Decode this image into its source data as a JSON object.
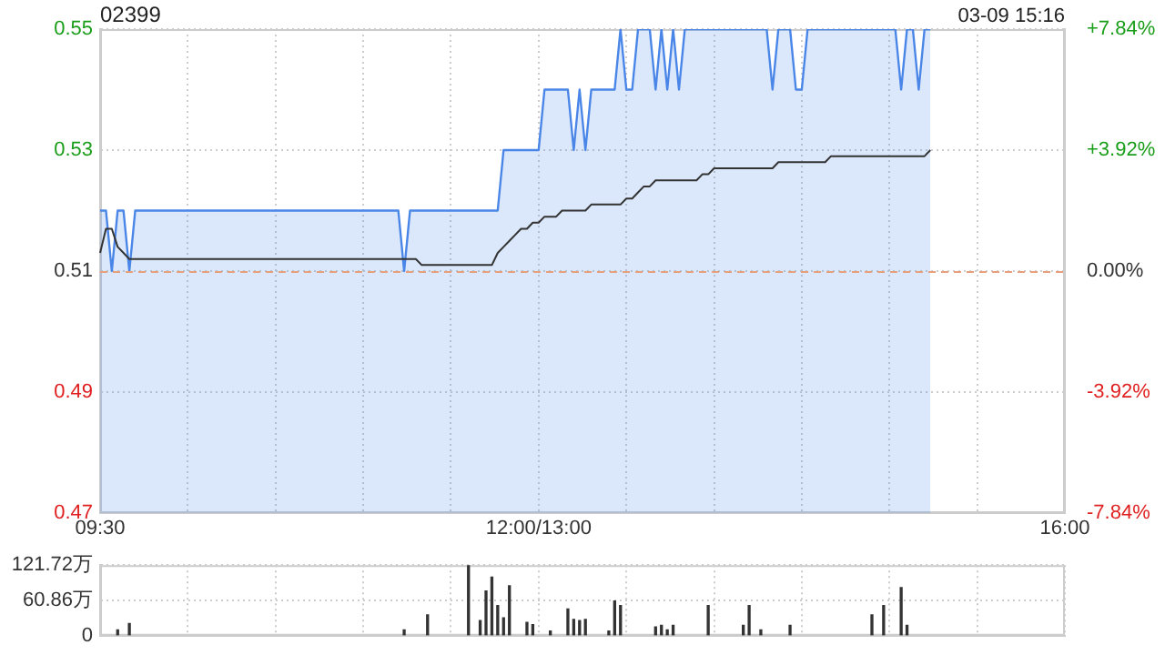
{
  "chart_data": [
    {
      "type": "line",
      "title": "02399",
      "annotations": [
        "03-09 15:16"
      ],
      "categories": [
        "09:30",
        null,
        null,
        null,
        null,
        null,
        null,
        null,
        null,
        null,
        null,
        null,
        null,
        null,
        null,
        null,
        null,
        null,
        null,
        null,
        null,
        null,
        null,
        null,
        null,
        null,
        null,
        null,
        null,
        null,
        null,
        null,
        null,
        null,
        null,
        null,
        null,
        null,
        null,
        null,
        null,
        null,
        null,
        null,
        null,
        null,
        null,
        null,
        null,
        null,
        null,
        null,
        null,
        null,
        null,
        null,
        null,
        null,
        null,
        null,
        null,
        null,
        null,
        null,
        null,
        null,
        null,
        null,
        null,
        null,
        null,
        null,
        null,
        null,
        null,
        "12:00/13:00",
        null,
        null,
        null,
        null,
        null,
        null,
        null,
        null,
        null,
        null,
        null,
        null,
        null,
        null,
        null,
        null,
        null,
        null,
        null,
        null,
        null,
        null,
        null,
        null,
        null,
        null,
        null,
        null,
        null,
        null,
        null,
        null,
        null,
        null,
        null,
        null,
        null,
        null,
        null,
        null,
        null,
        null,
        null,
        null,
        null,
        null,
        null,
        null,
        null,
        null,
        null,
        null,
        null,
        null,
        null,
        null,
        null,
        null,
        null,
        null,
        null,
        null,
        null,
        null,
        null,
        null,
        null,
        null,
        null,
        null,
        null,
        null,
        null,
        null,
        null,
        null,
        null,
        null,
        null,
        null,
        null,
        null,
        null,
        null,
        null,
        null,
        null,
        null,
        null,
        "16:00"
      ],
      "series": [
        {
          "type": "area",
          "color": "#4a86e8",
          "values": [
            0.52,
            0.52,
            0.51,
            0.52,
            0.52,
            0.51,
            0.52,
            0.52,
            0.52,
            0.52,
            0.52,
            0.52,
            0.52,
            0.52,
            0.52,
            0.52,
            0.52,
            0.52,
            0.52,
            0.52,
            0.52,
            0.52,
            0.52,
            0.52,
            0.52,
            0.52,
            0.52,
            0.52,
            0.52,
            0.52,
            0.52,
            0.52,
            0.52,
            0.52,
            0.52,
            0.52,
            0.52,
            0.52,
            0.52,
            0.52,
            0.52,
            0.52,
            0.52,
            0.52,
            0.52,
            0.52,
            0.52,
            0.52,
            0.52,
            0.52,
            0.52,
            0.52,
            0.51,
            0.52,
            0.52,
            0.52,
            0.52,
            0.52,
            0.52,
            0.52,
            0.52,
            0.52,
            0.52,
            0.52,
            0.52,
            0.52,
            0.52,
            0.52,
            0.52,
            0.53,
            0.53,
            0.53,
            0.53,
            0.53,
            0.53,
            0.53,
            0.54,
            0.54,
            0.54,
            0.54,
            0.54,
            0.53,
            0.54,
            0.53,
            0.54,
            0.54,
            0.54,
            0.54,
            0.54,
            0.55,
            0.54,
            0.54,
            0.55,
            0.55,
            0.55,
            0.54,
            0.55,
            0.54,
            0.55,
            0.54,
            0.55,
            0.55,
            0.55,
            0.55,
            0.55,
            0.55,
            0.55,
            0.55,
            0.55,
            0.55,
            0.55,
            0.55,
            0.55,
            0.55,
            0.55,
            0.54,
            0.55,
            0.55,
            0.55,
            0.54,
            0.54,
            0.55,
            0.55,
            0.55,
            0.55,
            0.55,
            0.55,
            0.55,
            0.55,
            0.55,
            0.55,
            0.55,
            0.55,
            0.55,
            0.55,
            0.55,
            0.55,
            0.54,
            0.55,
            0.55,
            0.54,
            0.55,
            0.55,
            null,
            null,
            null,
            null,
            null,
            null,
            null,
            null,
            null,
            null,
            null,
            null,
            null,
            null,
            null,
            null,
            null,
            null,
            null,
            null,
            null,
            null,
            null
          ]
        },
        {
          "type": "line",
          "color": "#333333",
          "values": [
            0.513,
            0.517,
            0.517,
            0.514,
            0.513,
            0.512,
            0.512,
            0.512,
            0.512,
            0.512,
            0.512,
            0.512,
            0.512,
            0.512,
            0.512,
            0.512,
            0.512,
            0.512,
            0.512,
            0.512,
            0.512,
            0.512,
            0.512,
            0.512,
            0.512,
            0.512,
            0.512,
            0.512,
            0.512,
            0.512,
            0.512,
            0.512,
            0.512,
            0.512,
            0.512,
            0.512,
            0.512,
            0.512,
            0.512,
            0.512,
            0.512,
            0.512,
            0.512,
            0.512,
            0.512,
            0.512,
            0.512,
            0.512,
            0.512,
            0.512,
            0.512,
            0.512,
            0.512,
            0.512,
            0.512,
            0.511,
            0.511,
            0.511,
            0.511,
            0.511,
            0.511,
            0.511,
            0.511,
            0.511,
            0.511,
            0.511,
            0.511,
            0.511,
            0.513,
            0.514,
            0.515,
            0.516,
            0.517,
            0.517,
            0.518,
            0.518,
            0.519,
            0.519,
            0.519,
            0.52,
            0.52,
            0.52,
            0.52,
            0.52,
            0.521,
            0.521,
            0.521,
            0.521,
            0.521,
            0.521,
            0.522,
            0.522,
            0.523,
            0.524,
            0.524,
            0.525,
            0.525,
            0.525,
            0.525,
            0.525,
            0.525,
            0.525,
            0.525,
            0.526,
            0.526,
            0.527,
            0.527,
            0.527,
            0.527,
            0.527,
            0.527,
            0.527,
            0.527,
            0.527,
            0.527,
            0.527,
            0.528,
            0.528,
            0.528,
            0.528,
            0.528,
            0.528,
            0.528,
            0.528,
            0.528,
            0.529,
            0.529,
            0.529,
            0.529,
            0.529,
            0.529,
            0.529,
            0.529,
            0.529,
            0.529,
            0.529,
            0.529,
            0.529,
            0.529,
            0.529,
            0.529,
            0.529,
            0.53,
            null,
            null,
            null,
            null,
            null,
            null,
            null,
            null,
            null,
            null,
            null,
            null,
            null,
            null,
            null,
            null,
            null,
            null,
            null,
            null,
            null,
            null,
            null
          ]
        }
      ],
      "ylim": [
        0.47,
        0.55
      ],
      "yticks": [
        0.47,
        0.49,
        0.51,
        0.53,
        0.55
      ],
      "y2lim": [
        -7.84,
        7.84
      ],
      "y2ticks": [
        {
          "value": -7.84,
          "label": "-7.84%"
        },
        {
          "value": -3.92,
          "label": "-3.92%"
        },
        {
          "value": 0,
          "label": "0.00%"
        },
        {
          "value": 3.92,
          "label": "+3.92%"
        },
        {
          "value": 7.84,
          "label": "+7.84%"
        }
      ],
      "ref_lines": [
        {
          "axis": "y",
          "value": 0.51,
          "color": "#e8a07a",
          "line_style": "dashed"
        }
      ],
      "grid": true,
      "marker": "none"
    },
    {
      "type": "bar",
      "color": "#333333",
      "categories": [
        null,
        null,
        null,
        null,
        null,
        null,
        null,
        null,
        null,
        null,
        null,
        null,
        null,
        null,
        null,
        null,
        null,
        null,
        null,
        null,
        null,
        null,
        null,
        null,
        null,
        null,
        null,
        null,
        null,
        null,
        null,
        null,
        null,
        null,
        null,
        null,
        null,
        null,
        null,
        null,
        null,
        null,
        null,
        null,
        null,
        null,
        null,
        null,
        null,
        null,
        null,
        null,
        null,
        null,
        null,
        null,
        null,
        null,
        null,
        null,
        null,
        null,
        null,
        null,
        null,
        null,
        null,
        null,
        null,
        null,
        null,
        null,
        null,
        null,
        null,
        null,
        null,
        null,
        null,
        null,
        null,
        null,
        null,
        null,
        null,
        null,
        null,
        null,
        null,
        null,
        null,
        null,
        null,
        null,
        null,
        null,
        null,
        null,
        null,
        null,
        null,
        null,
        null,
        null,
        null,
        null,
        null,
        null,
        null,
        null,
        null,
        null,
        null,
        null,
        null,
        null,
        null,
        null,
        null,
        null,
        null,
        null,
        null,
        null,
        null,
        null,
        null,
        null,
        null,
        null,
        null,
        null,
        null,
        null,
        null,
        null,
        null,
        null,
        null,
        null,
        null,
        null,
        null,
        null,
        null,
        null,
        null,
        null,
        null,
        null,
        null,
        null,
        null,
        null,
        null,
        null,
        null,
        null,
        null,
        null,
        null,
        null,
        null,
        null,
        null,
        null
      ],
      "values": [
        null,
        null,
        null,
        10,
        null,
        21,
        null,
        null,
        null,
        null,
        null,
        null,
        null,
        null,
        null,
        null,
        null,
        null,
        null,
        null,
        null,
        null,
        null,
        null,
        null,
        null,
        null,
        null,
        null,
        null,
        null,
        null,
        null,
        null,
        null,
        null,
        null,
        null,
        null,
        null,
        null,
        null,
        null,
        null,
        null,
        null,
        null,
        null,
        null,
        null,
        null,
        null,
        10,
        null,
        null,
        null,
        36,
        null,
        null,
        null,
        null,
        null,
        null,
        121,
        null,
        26,
        77,
        101,
        52,
        31,
        86,
        null,
        null,
        23,
        19,
        null,
        null,
        8,
        null,
        null,
        46,
        28,
        26,
        28,
        null,
        null,
        null,
        8,
        60,
        52,
        null,
        null,
        null,
        null,
        null,
        15,
        18,
        10,
        18,
        null,
        null,
        null,
        null,
        null,
        52,
        null,
        null,
        null,
        null,
        null,
        18,
        52,
        null,
        10,
        null,
        null,
        null,
        null,
        18,
        null,
        null,
        null,
        null,
        null,
        null,
        null,
        null,
        null,
        null,
        null,
        null,
        null,
        36,
        null,
        52,
        null,
        null,
        83,
        18,
        null,
        null,
        null,
        null,
        null,
        null,
        null,
        null,
        null,
        null,
        null,
        null,
        null,
        null,
        null,
        null,
        null,
        null,
        null,
        null,
        null,
        null,
        null,
        null,
        null,
        null,
        null
      ],
      "ylim": [
        0,
        121.72
      ],
      "yticks": [
        0,
        {
          "value": 60.86,
          "label": "60.86万"
        },
        {
          "value": 121.72,
          "label": "121.72万"
        }
      ],
      "tick_labels": "y",
      "grid": true
    }
  ]
}
